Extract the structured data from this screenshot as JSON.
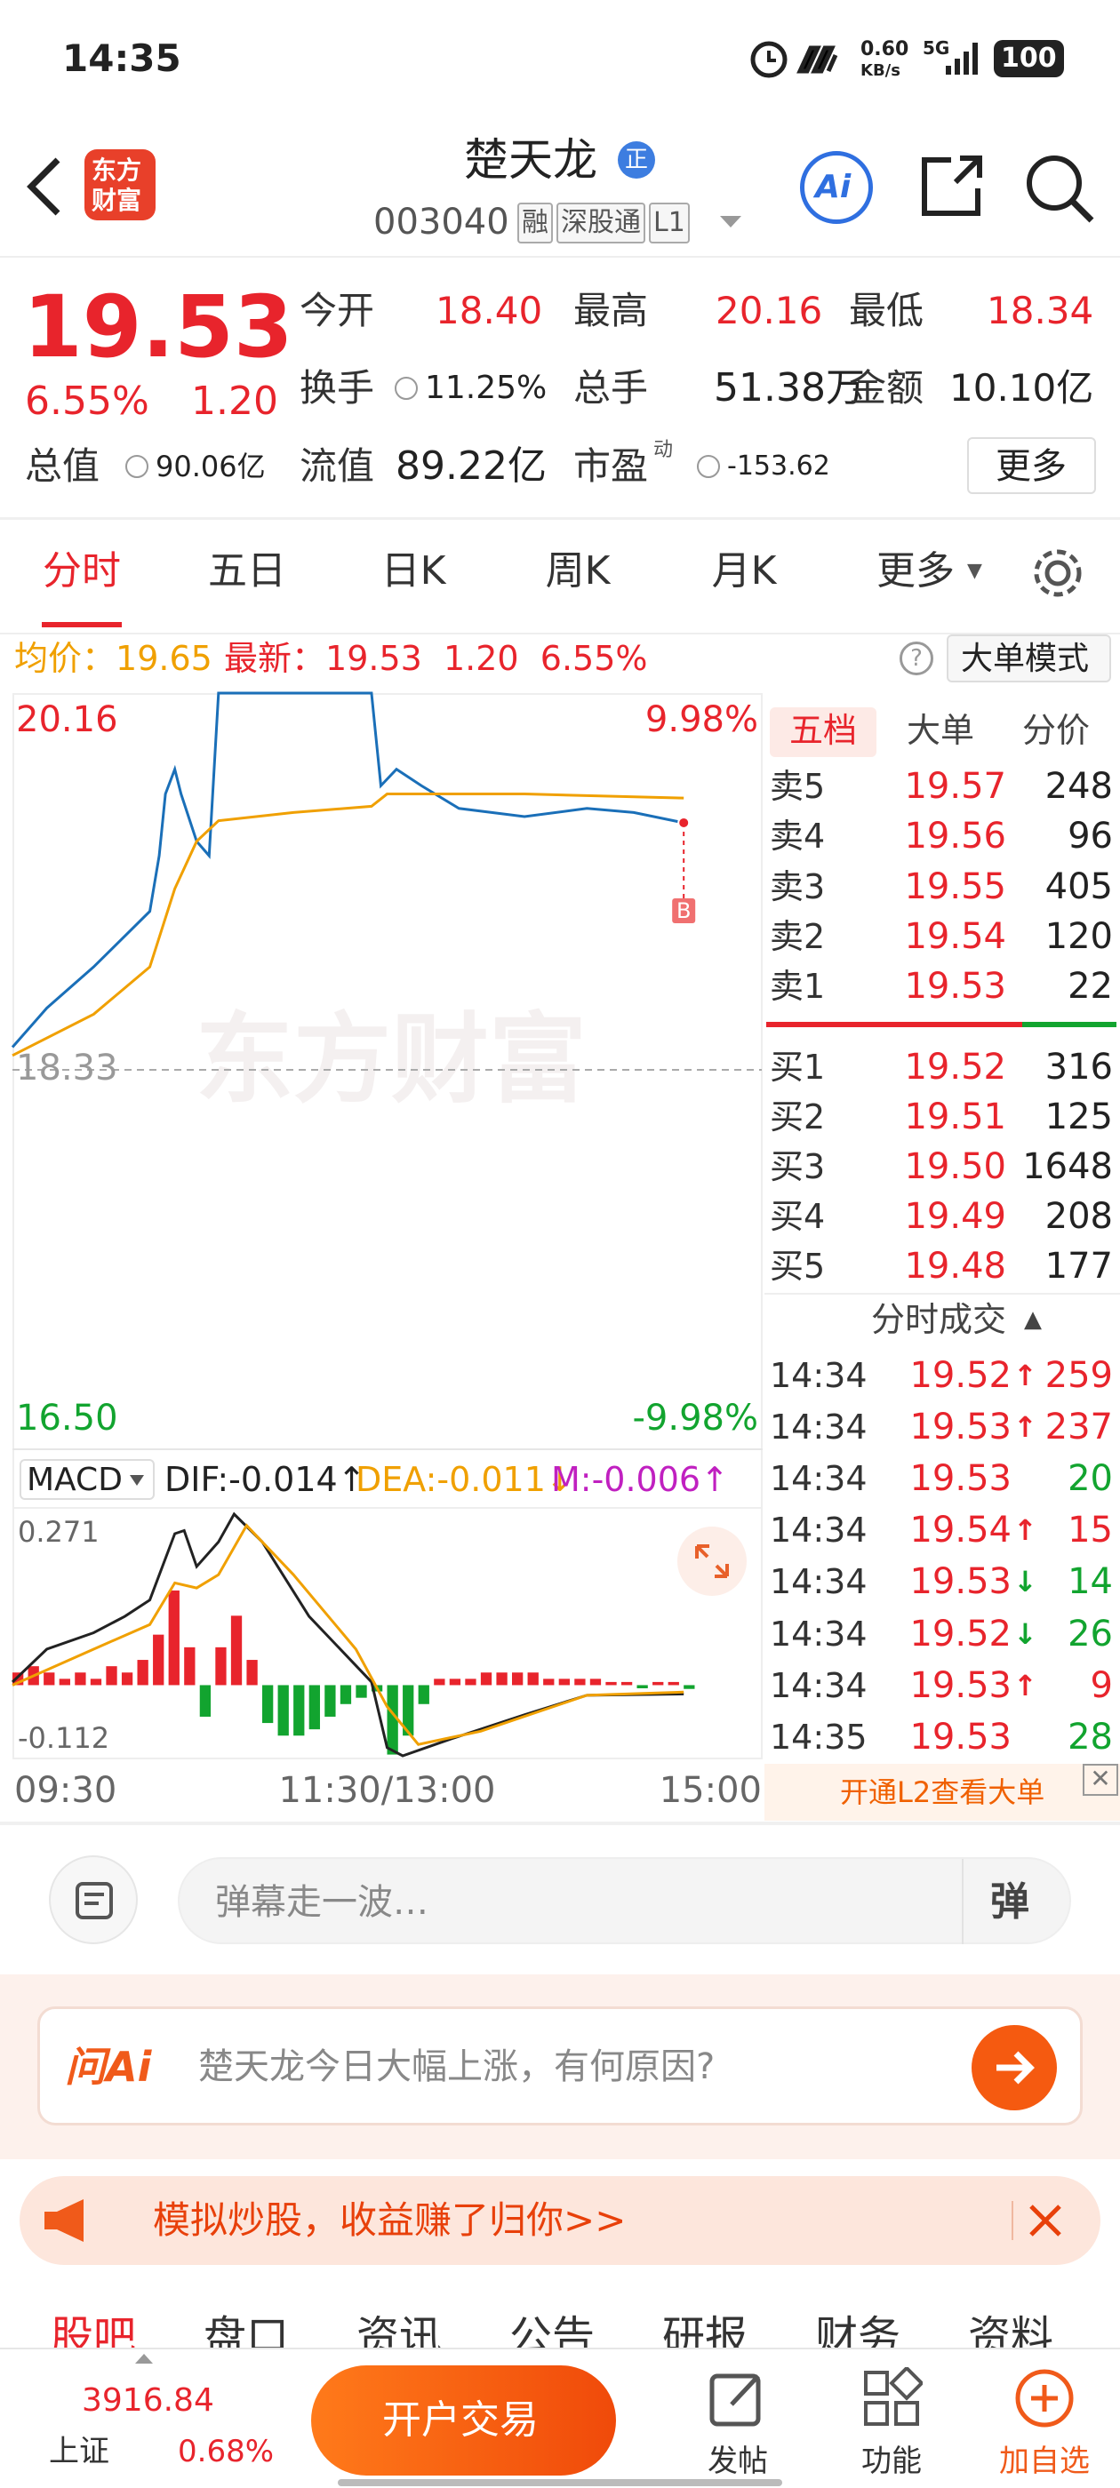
{
  "status_bar": {
    "time": "14:35",
    "net_speed": "0.60",
    "net_unit": "KB/s",
    "signal": "5G",
    "battery": "100"
  },
  "header": {
    "logo_line1": "东方",
    "logo_line2": "财富",
    "name": "楚天龙",
    "badge": "正",
    "code": "003040",
    "tags": [
      "融",
      "深股通",
      "L1"
    ],
    "ai": "Ai"
  },
  "quote": {
    "price": "19.53",
    "change_pct": "6.55%",
    "change": "1.20",
    "more": "更多",
    "fields": [
      {
        "label": "今开",
        "value": "18.40"
      },
      {
        "label": "最高",
        "value": "20.16"
      },
      {
        "label": "最低",
        "value": "18.34"
      },
      {
        "label": "换手",
        "value": "11.25%"
      },
      {
        "label": "总手",
        "value": "51.38万"
      },
      {
        "label": "金额",
        "value": "10.10亿"
      },
      {
        "label": "总值",
        "value": "90.06亿"
      },
      {
        "label": "流值",
        "value": "89.22亿"
      },
      {
        "label": "市盈",
        "sup": "动",
        "value": "-153.62"
      }
    ]
  },
  "tabs": [
    "分时",
    "五日",
    "日K",
    "周K",
    "月K",
    "更多"
  ],
  "chart_data": [
    {
      "type": "line",
      "legend": {
        "avg_label": "均价：",
        "avg": "19.65",
        "latest_label": "最新：",
        "latest": "19.53",
        "change": "1.20",
        "change_pct": "6.55%",
        "mode": "大单模式"
      },
      "watermark": "东方财富",
      "annotation": "B",
      "xlim": [
        0,
        240
      ],
      "xticks": [
        {
          "value": 0,
          "label": "09:30"
        },
        {
          "value": 120,
          "label": "11:30/13:00"
        },
        {
          "value": 240,
          "label": "15:00"
        }
      ],
      "ylim": [
        16.5,
        20.16
      ],
      "yticks": [
        20.16,
        18.33,
        {
          "value": 16.5,
          "label": "16.50"
        }
      ],
      "reference_line": 18.33,
      "y2lim": [
        -9.98,
        9.98
      ],
      "y2ticks": [
        {
          "value": 9.98,
          "label": "9.98%"
        },
        {
          "value": -9.98,
          "label": "-9.98%"
        }
      ],
      "up_color": "#e8242c",
      "down_color": "#12a42f",
      "series": [
        {
          "color": "#1a6fb8",
          "x": [
            0,
            11,
            26,
            36,
            44,
            47,
            49,
            52,
            54,
            59,
            63,
            66,
            115,
            118,
            123,
            131,
            143,
            164,
            184,
            199,
            215
          ],
          "values": [
            18.44,
            18.63,
            18.83,
            18.98,
            19.1,
            19.37,
            19.67,
            19.79,
            19.67,
            19.44,
            19.37,
            20.16,
            20.16,
            19.71,
            19.79,
            19.71,
            19.6,
            19.56,
            19.6,
            19.58,
            19.53
          ]
        },
        {
          "color": "#f0a000",
          "x": [
            0,
            26,
            44,
            52,
            59,
            66,
            90,
            115,
            120,
            164,
            215
          ],
          "values": [
            18.4,
            18.6,
            18.83,
            19.21,
            19.44,
            19.54,
            19.58,
            19.61,
            19.67,
            19.67,
            19.65
          ]
        }
      ]
    },
    {
      "type": "macd",
      "title": "MACD",
      "legend": [
        {
          "label": "DIF:-0.014↑",
          "color": "#222222"
        },
        {
          "label": "DEA:-0.011↓",
          "color": "#f0a000"
        },
        {
          "label": "M:-0.006↑",
          "color": "#c020c0"
        }
      ],
      "xlim": [
        0,
        240
      ],
      "ylim": [
        -0.112,
        0.271
      ],
      "yticks": [
        0.271,
        -0.112
      ],
      "series": [
        {
          "name": "DIF",
          "color": "#222222",
          "x": [
            0,
            11,
            26,
            36,
            44,
            52,
            55,
            59,
            66,
            71,
            80,
            95,
            115,
            120,
            125,
            140,
            164,
            184,
            215
          ],
          "values": [
            0.005,
            0.057,
            0.083,
            0.109,
            0.135,
            0.24,
            0.245,
            0.188,
            0.227,
            0.271,
            0.227,
            0.109,
            0.005,
            -0.099,
            -0.112,
            -0.086,
            -0.047,
            -0.016,
            -0.014
          ]
        },
        {
          "name": "DEA",
          "color": "#f0a000",
          "x": [
            0,
            26,
            44,
            52,
            59,
            66,
            75,
            90,
            110,
            120,
            130,
            150,
            184,
            215
          ],
          "values": [
            0,
            0.057,
            0.096,
            0.162,
            0.154,
            0.175,
            0.253,
            0.175,
            0.057,
            -0.034,
            -0.094,
            -0.073,
            -0.016,
            -0.011
          ]
        }
      ],
      "histogram": {
        "up_color": "#e8242c",
        "down_color": "#12a42f",
        "x": [
          0,
          5,
          10,
          15,
          20,
          25,
          30,
          35,
          40,
          45,
          50,
          55,
          60,
          65,
          70,
          75,
          80,
          85,
          90,
          95,
          100,
          105,
          110,
          115,
          120,
          125,
          130,
          135,
          140,
          145,
          150,
          155,
          160,
          165,
          170,
          175,
          180,
          185,
          190,
          195,
          200,
          205,
          210,
          215
        ],
        "values": [
          0.02,
          0.03,
          0.02,
          0.01,
          0.02,
          0.01,
          0.03,
          0.02,
          0.04,
          0.08,
          0.15,
          0.06,
          -0.05,
          0.06,
          0.11,
          0.04,
          -0.06,
          -0.08,
          -0.08,
          -0.07,
          -0.05,
          -0.03,
          -0.02,
          -0.01,
          -0.11,
          -0.08,
          -0.03,
          0.01,
          0.01,
          0.01,
          0.02,
          0.02,
          0.02,
          0.02,
          0.01,
          0.01,
          0.01,
          0.01,
          0.005,
          0.005,
          -0.005,
          0.005,
          0.005,
          -0.006
        ]
      }
    }
  ],
  "order_book": {
    "tabs": [
      "五档",
      "大单",
      "分价"
    ],
    "price_color": "#e8242c",
    "asks": [
      {
        "label": "卖5",
        "price": "19.57",
        "volume": "248"
      },
      {
        "label": "卖4",
        "price": "19.56",
        "volume": "96"
      },
      {
        "label": "卖3",
        "price": "19.55",
        "volume": "405"
      },
      {
        "label": "卖2",
        "price": "19.54",
        "volume": "120"
      },
      {
        "label": "卖1",
        "price": "19.53",
        "volume": "22"
      }
    ],
    "bids": [
      {
        "label": "买1",
        "price": "19.52",
        "volume": "316"
      },
      {
        "label": "买2",
        "price": "19.51",
        "volume": "125"
      },
      {
        "label": "买3",
        "price": "19.50",
        "volume": "1648"
      },
      {
        "label": "买4",
        "price": "19.49",
        "volume": "208"
      },
      {
        "label": "买5",
        "price": "19.48",
        "volume": "177"
      }
    ]
  },
  "trades": {
    "title": "分时成交",
    "l2": "开通L2查看大单",
    "buy_color": "#e8242c",
    "sell_color": "#12a42f",
    "rows": [
      {
        "time": "14:34",
        "price": "19.52",
        "dir": "↑",
        "volume": "259",
        "side": "buy"
      },
      {
        "time": "14:34",
        "price": "19.53",
        "dir": "↑",
        "volume": "237",
        "side": "buy"
      },
      {
        "time": "14:34",
        "price": "19.53",
        "volume": "20",
        "side": "sell"
      },
      {
        "time": "14:34",
        "price": "19.54",
        "dir": "↑",
        "volume": "15",
        "side": "buy"
      },
      {
        "time": "14:34",
        "price": "19.53",
        "dir": "↓",
        "volume": "14",
        "side": "sell"
      },
      {
        "time": "14:34",
        "price": "19.52",
        "dir": "↓",
        "volume": "26",
        "side": "sell"
      },
      {
        "time": "14:34",
        "price": "19.53",
        "dir": "↑",
        "volume": "9",
        "side": "buy"
      },
      {
        "time": "14:35",
        "price": "19.53",
        "volume": "28",
        "side": "sell"
      }
    ]
  },
  "danmaku": {
    "placeholder": "弹幕走一波…",
    "button": "弹"
  },
  "ai_box": {
    "brand": "问Ai",
    "question": "楚天龙今日大幅上涨，有何原因?"
  },
  "promo": {
    "text": "模拟炒股，收益赚了归你>>"
  },
  "bottom_tabs": [
    "股吧",
    "盘口",
    "资讯",
    "公告",
    "研报",
    "财务",
    "资料"
  ],
  "bottom_nav": {
    "index_value": "3916.84",
    "index_name": "上证",
    "index_change": "0.68%",
    "trade": "开户交易",
    "items": [
      "发帖",
      "功能",
      "加自选"
    ]
  }
}
